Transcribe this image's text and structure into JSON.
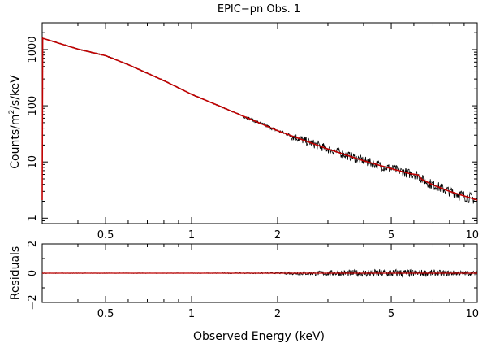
{
  "chart_data": [
    {
      "type": "line",
      "title": "EPIC−pn Obs. 1",
      "xlabel": "",
      "ylabel_base": "Counts/m",
      "ylabel_sup": "2",
      "ylabel_tail": "/s/keV",
      "xscale": "log",
      "yscale": "log",
      "xlim": [
        0.3,
        10
      ],
      "ylim": [
        0.8,
        3000
      ],
      "xticks": [
        0.5,
        1,
        2,
        5,
        10
      ],
      "xtick_labels": [
        "0.5",
        "1",
        "2",
        "5",
        "10"
      ],
      "yticks": [
        1,
        10,
        100,
        1000
      ],
      "ytick_labels": [
        "1",
        "10",
        "100",
        "1000"
      ],
      "grid": false,
      "series": [
        {
          "role": "data",
          "color": "#000000",
          "x": [
            0.3,
            0.4,
            0.5,
            0.6,
            0.8,
            1.0,
            1.5,
            2.0,
            3.0,
            4.0,
            5.0,
            5.8,
            6.2,
            6.4,
            7.0,
            8.0,
            10.0
          ],
          "y": [
            1600,
            1020,
            780,
            540,
            280,
            160,
            67,
            36,
            17,
            10.5,
            7.6,
            6.2,
            5.9,
            4.9,
            3.9,
            3.0,
            2.1
          ]
        },
        {
          "role": "model",
          "color": "#c00000",
          "x": [
            0.3,
            0.4,
            0.5,
            0.6,
            0.8,
            1.0,
            1.5,
            2.0,
            3.0,
            4.0,
            5.0,
            5.8,
            6.2,
            6.4,
            7.0,
            8.0,
            10.0
          ],
          "y": [
            1600,
            1020,
            780,
            540,
            280,
            160,
            67,
            36,
            17,
            10.5,
            7.6,
            6.2,
            5.9,
            4.9,
            3.9,
            3.0,
            2.1
          ]
        }
      ]
    },
    {
      "type": "line",
      "title": "",
      "xlabel": "Observed Energy (keV)",
      "ylabel": "Residuals",
      "xscale": "log",
      "xlim": [
        0.3,
        10
      ],
      "ylim": [
        -2,
        2
      ],
      "xticks": [
        0.5,
        1,
        2,
        5,
        10
      ],
      "xtick_labels": [
        "0.5",
        "1",
        "2",
        "5",
        "10"
      ],
      "yticks": [
        -2,
        0,
        2
      ],
      "ytick_labels": [
        "−2",
        "0",
        "2"
      ],
      "grid": false,
      "series": [
        {
          "role": "residuals",
          "color": "#000000",
          "x": [
            0.3,
            1.0,
            2.0,
            2.3,
            5.0,
            10.0
          ],
          "y": [
            0,
            0,
            0,
            0,
            0,
            0
          ],
          "scatter": [
            0.02,
            0.02,
            0.04,
            0.12,
            0.3,
            0.15
          ]
        },
        {
          "role": "zero-line",
          "color": "#c00000",
          "x": [
            0.3,
            10.0
          ],
          "y": [
            0,
            0
          ]
        }
      ]
    }
  ]
}
